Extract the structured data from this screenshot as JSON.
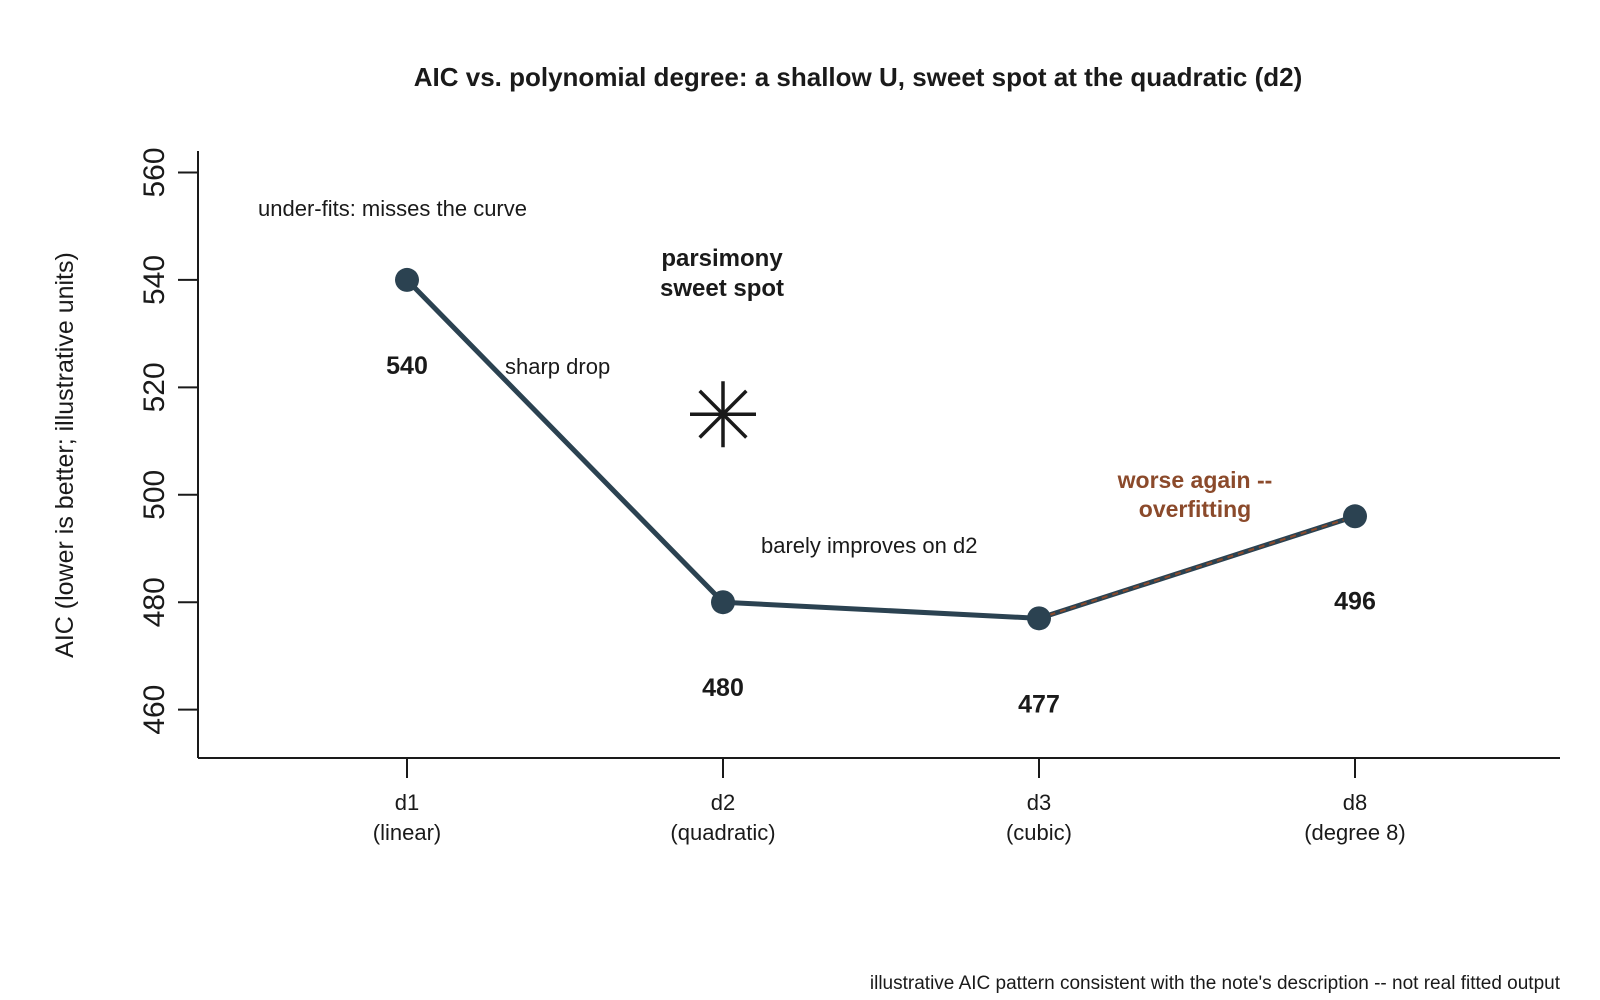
{
  "chart_data": {
    "type": "line",
    "title": "AIC vs. polynomial degree: a shallow U, sweet spot at the quadratic (d2)",
    "ylabel": "AIC (lower is better; illustrative units)",
    "xlabel": "",
    "categories": [
      {
        "line1": "d1",
        "line2": "(linear)"
      },
      {
        "line1": "d2",
        "line2": "(quadratic)"
      },
      {
        "line1": "d3",
        "line2": "(cubic)"
      },
      {
        "line1": "d8",
        "line2": "(degree 8)"
      }
    ],
    "values": [
      540,
      480,
      477,
      496
    ],
    "data_labels": [
      "540",
      "480",
      "477",
      "496"
    ],
    "ylim": [
      451,
      564
    ],
    "yticks": [
      460,
      480,
      500,
      520,
      540,
      560
    ],
    "grid": false,
    "line_color": "#2b4251",
    "overfit_segment_color": "#8b4a2b",
    "annotations": {
      "underfit": "under-fits: misses the curve",
      "sharp_drop": "sharp drop",
      "sweet_spot_line1": "parsimony",
      "sweet_spot_line2": "sweet spot",
      "barely_improves": "barely improves on d2",
      "worse_line1": "worse again --",
      "worse_line2": "overfitting"
    },
    "sweet_spot_marker": {
      "category_index": 1,
      "y": 515,
      "symbol": "asterisk"
    },
    "footnote": "illustrative AIC pattern consistent with the note's description -- not real fitted output"
  }
}
